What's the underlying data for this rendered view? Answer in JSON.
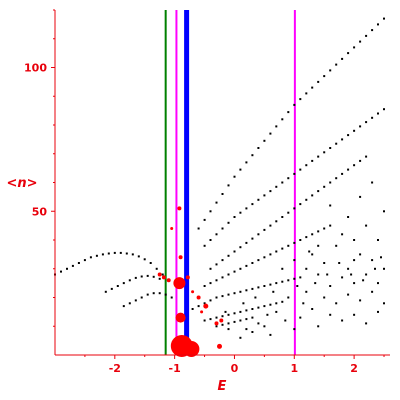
{
  "chart_data": {
    "type": "scatter",
    "title": "",
    "xlabel": "E",
    "ylabel": "<n>",
    "xlim": [
      -3.0,
      2.6
    ],
    "ylim": [
      0,
      120
    ],
    "xticks": [
      -2,
      -1,
      0,
      1,
      2
    ],
    "xtick_labels": [
      "-2",
      "-1",
      "0",
      "1",
      "2"
    ],
    "yticks": [
      50,
      100
    ],
    "ytick_labels": [
      "50",
      "100"
    ],
    "grid": false,
    "vertical_lines": [
      {
        "x": -1.15,
        "color": "#008000",
        "width": 2
      },
      {
        "x": -0.97,
        "color": "#ff00ff",
        "width": 2
      },
      {
        "x": -0.8,
        "color": "#0000ff",
        "width": 5
      },
      {
        "x": 1.01,
        "color": "#ff00ff",
        "width": 2
      }
    ],
    "black_points": [
      [
        -3.0,
        28
      ],
      [
        -2.9,
        29
      ],
      [
        -2.8,
        30
      ],
      [
        -2.7,
        31
      ],
      [
        -2.6,
        32
      ],
      [
        -2.5,
        33
      ],
      [
        -2.4,
        34
      ],
      [
        -2.3,
        34.5
      ],
      [
        -2.2,
        35
      ],
      [
        -2.1,
        35.3
      ],
      [
        -2.0,
        35.5
      ],
      [
        -1.9,
        35.5
      ],
      [
        -1.8,
        35.3
      ],
      [
        -1.7,
        35
      ],
      [
        -1.6,
        34.3
      ],
      [
        -1.5,
        33.3
      ],
      [
        -1.4,
        32
      ],
      [
        -1.3,
        30
      ],
      [
        -1.2,
        28
      ],
      [
        -2.15,
        22
      ],
      [
        -2.05,
        23
      ],
      [
        -1.95,
        24
      ],
      [
        -1.85,
        25
      ],
      [
        -1.75,
        26
      ],
      [
        -1.65,
        26.8
      ],
      [
        -1.55,
        27.3
      ],
      [
        -1.45,
        27.5
      ],
      [
        -1.35,
        27.2
      ],
      [
        -1.25,
        26.5
      ],
      [
        -1.85,
        17
      ],
      [
        -1.75,
        18
      ],
      [
        -1.65,
        19
      ],
      [
        -1.55,
        20
      ],
      [
        -1.45,
        21
      ],
      [
        -1.35,
        21.5
      ],
      [
        -1.25,
        21.5
      ],
      [
        -1.15,
        21
      ],
      [
        -1.05,
        20
      ],
      [
        -0.6,
        44
      ],
      [
        -0.5,
        47
      ],
      [
        -0.4,
        50
      ],
      [
        -0.3,
        53
      ],
      [
        -0.2,
        56
      ],
      [
        -0.1,
        59
      ],
      [
        0.0,
        62
      ],
      [
        0.1,
        64.5
      ],
      [
        0.2,
        67
      ],
      [
        0.3,
        69.5
      ],
      [
        0.4,
        72
      ],
      [
        0.5,
        74.5
      ],
      [
        0.6,
        77
      ],
      [
        0.7,
        79.5
      ],
      [
        0.8,
        82
      ],
      [
        0.9,
        84.5
      ],
      [
        1.0,
        87
      ],
      [
        1.1,
        89
      ],
      [
        1.2,
        91
      ],
      [
        1.3,
        93
      ],
      [
        1.4,
        95
      ],
      [
        1.5,
        97
      ],
      [
        1.6,
        99
      ],
      [
        1.7,
        101
      ],
      [
        1.8,
        103
      ],
      [
        1.9,
        105
      ],
      [
        2.0,
        107
      ],
      [
        2.1,
        109
      ],
      [
        2.2,
        111
      ],
      [
        2.3,
        113
      ],
      [
        2.4,
        115
      ],
      [
        2.5,
        117
      ],
      [
        -0.5,
        38
      ],
      [
        -0.4,
        40
      ],
      [
        -0.3,
        42
      ],
      [
        -0.2,
        44
      ],
      [
        -0.1,
        46
      ],
      [
        0.0,
        48
      ],
      [
        0.1,
        49.5
      ],
      [
        0.2,
        51
      ],
      [
        0.3,
        52.5
      ],
      [
        0.4,
        54
      ],
      [
        0.5,
        55.5
      ],
      [
        0.6,
        57
      ],
      [
        0.7,
        58.5
      ],
      [
        0.8,
        60
      ],
      [
        0.9,
        61.5
      ],
      [
        1.0,
        63
      ],
      [
        1.1,
        64.5
      ],
      [
        1.2,
        66
      ],
      [
        1.3,
        67.5
      ],
      [
        1.4,
        69
      ],
      [
        1.5,
        70.5
      ],
      [
        1.6,
        72
      ],
      [
        1.7,
        73.5
      ],
      [
        1.8,
        75
      ],
      [
        1.9,
        76.5
      ],
      [
        2.0,
        78
      ],
      [
        2.1,
        79.5
      ],
      [
        2.2,
        81
      ],
      [
        2.3,
        82.5
      ],
      [
        2.4,
        84
      ],
      [
        2.5,
        85.5
      ],
      [
        -0.4,
        30
      ],
      [
        -0.3,
        31.5
      ],
      [
        -0.2,
        33
      ],
      [
        -0.1,
        34.5
      ],
      [
        0.0,
        36
      ],
      [
        0.1,
        37.5
      ],
      [
        0.2,
        39
      ],
      [
        0.3,
        40.5
      ],
      [
        0.4,
        42
      ],
      [
        0.5,
        43.5
      ],
      [
        0.6,
        45
      ],
      [
        0.7,
        46.5
      ],
      [
        0.8,
        48
      ],
      [
        0.9,
        49.5
      ],
      [
        1.0,
        51
      ],
      [
        1.1,
        52.5
      ],
      [
        1.2,
        54
      ],
      [
        1.3,
        55.5
      ],
      [
        1.4,
        57
      ],
      [
        1.5,
        58.5
      ],
      [
        1.6,
        60
      ],
      [
        1.7,
        61.5
      ],
      [
        1.8,
        63
      ],
      [
        1.9,
        64.5
      ],
      [
        2.0,
        66
      ],
      [
        2.1,
        67.5
      ],
      [
        2.2,
        69
      ],
      [
        -0.5,
        24
      ],
      [
        -0.4,
        25
      ],
      [
        -0.3,
        26
      ],
      [
        -0.2,
        27
      ],
      [
        -0.1,
        28
      ],
      [
        0.0,
        29
      ],
      [
        0.1,
        30
      ],
      [
        0.2,
        31
      ],
      [
        0.3,
        32
      ],
      [
        0.4,
        33
      ],
      [
        0.5,
        34
      ],
      [
        0.6,
        35
      ],
      [
        0.7,
        36
      ],
      [
        0.8,
        37
      ],
      [
        0.9,
        38
      ],
      [
        1.0,
        39
      ],
      [
        1.1,
        40
      ],
      [
        1.2,
        41
      ],
      [
        1.3,
        42
      ],
      [
        1.4,
        43
      ],
      [
        1.5,
        44
      ],
      [
        1.6,
        45
      ],
      [
        -0.7,
        16
      ],
      [
        -0.6,
        17
      ],
      [
        -0.5,
        18
      ],
      [
        -0.4,
        19
      ],
      [
        -0.3,
        20
      ],
      [
        -0.2,
        20.5
      ],
      [
        -0.1,
        21
      ],
      [
        0.0,
        21.5
      ],
      [
        0.1,
        22
      ],
      [
        0.2,
        22.5
      ],
      [
        0.3,
        23
      ],
      [
        0.4,
        23.5
      ],
      [
        0.5,
        24
      ],
      [
        0.6,
        24.5
      ],
      [
        0.7,
        25
      ],
      [
        0.8,
        25.5
      ],
      [
        0.9,
        26
      ],
      [
        1.0,
        26.5
      ],
      [
        1.1,
        27
      ],
      [
        -0.5,
        12
      ],
      [
        -0.4,
        12.5
      ],
      [
        -0.3,
        13
      ],
      [
        -0.2,
        13.5
      ],
      [
        -0.1,
        14
      ],
      [
        0.0,
        14.5
      ],
      [
        0.1,
        15
      ],
      [
        0.2,
        15.5
      ],
      [
        0.3,
        16
      ],
      [
        0.4,
        16.5
      ],
      [
        0.5,
        17
      ],
      [
        0.6,
        17.5
      ],
      [
        0.7,
        18
      ],
      [
        0.8,
        18.5
      ],
      [
        -0.3,
        10
      ],
      [
        -0.2,
        10.5
      ],
      [
        -0.1,
        11
      ],
      [
        0.0,
        11.5
      ],
      [
        0.1,
        12
      ],
      [
        0.2,
        12.5
      ],
      [
        0.3,
        13
      ],
      [
        1.3,
        35
      ],
      [
        1.5,
        32
      ],
      [
        1.7,
        38
      ],
      [
        1.9,
        30
      ],
      [
        2.1,
        35
      ],
      [
        2.3,
        33
      ],
      [
        2.5,
        30
      ],
      [
        1.4,
        28
      ],
      [
        1.6,
        24
      ],
      [
        1.8,
        27
      ],
      [
        2.0,
        25
      ],
      [
        2.2,
        28
      ],
      [
        2.4,
        25
      ],
      [
        1.2,
        22
      ],
      [
        1.5,
        20
      ],
      [
        1.7,
        18
      ],
      [
        1.9,
        21
      ],
      [
        2.1,
        19
      ],
      [
        2.3,
        22
      ],
      [
        2.5,
        18
      ],
      [
        1.3,
        16
      ],
      [
        1.6,
        14
      ],
      [
        2.0,
        14
      ],
      [
        2.4,
        15
      ],
      [
        1.1,
        13
      ],
      [
        1.8,
        12
      ],
      [
        0.9,
        20
      ],
      [
        0.7,
        15
      ],
      [
        0.5,
        10
      ],
      [
        0.3,
        8
      ],
      [
        0.6,
        7
      ],
      [
        1.0,
        9
      ],
      [
        1.4,
        10
      ],
      [
        2.2,
        11
      ],
      [
        0.8,
        30
      ],
      [
        1.0,
        33
      ],
      [
        1.2,
        30
      ],
      [
        2.0,
        40
      ],
      [
        2.2,
        45
      ],
      [
        2.4,
        40
      ],
      [
        2.5,
        50
      ],
      [
        1.9,
        48
      ],
      [
        1.6,
        52
      ],
      [
        2.1,
        55
      ],
      [
        2.3,
        60
      ],
      [
        1.8,
        42
      ],
      [
        1.4,
        38
      ],
      [
        2.0,
        33
      ],
      [
        0.1,
        6
      ],
      [
        0.2,
        9
      ],
      [
        -0.1,
        9
      ],
      [
        0.4,
        11
      ],
      [
        0.55,
        14
      ],
      [
        0.15,
        18
      ],
      [
        -0.15,
        15
      ],
      [
        0.35,
        20
      ],
      [
        0.65,
        22
      ],
      [
        0.85,
        12
      ],
      [
        1.15,
        18
      ],
      [
        1.35,
        25
      ],
      [
        1.55,
        28
      ],
      [
        1.75,
        32
      ],
      [
        1.95,
        28
      ],
      [
        2.15,
        26
      ],
      [
        2.35,
        30
      ],
      [
        2.45,
        34
      ],
      [
        1.25,
        36
      ],
      [
        1.05,
        24
      ]
    ],
    "red_points": [
      {
        "x": -1.25,
        "y": 28,
        "r": 2
      },
      {
        "x": -1.18,
        "y": 27,
        "r": 2
      },
      {
        "x": -1.1,
        "y": 26,
        "r": 2
      },
      {
        "x": -0.92,
        "y": 51,
        "r": 2
      },
      {
        "x": -1.05,
        "y": 44,
        "r": 1.5
      },
      {
        "x": -0.92,
        "y": 25,
        "r": 6
      },
      {
        "x": -0.9,
        "y": 13,
        "r": 5
      },
      {
        "x": -0.88,
        "y": 2,
        "r": 11
      },
      {
        "x": -0.72,
        "y": 2,
        "r": 8
      },
      {
        "x": -0.9,
        "y": 34,
        "r": 2
      },
      {
        "x": -0.78,
        "y": 27,
        "r": 2
      },
      {
        "x": -0.6,
        "y": 20,
        "r": 2
      },
      {
        "x": -0.48,
        "y": 17,
        "r": 2.5
      },
      {
        "x": -0.3,
        "y": 11,
        "r": 2
      },
      {
        "x": -0.22,
        "y": 12,
        "r": 2
      },
      {
        "x": -0.25,
        "y": 3,
        "r": 2.5
      },
      {
        "x": -0.7,
        "y": 22,
        "r": 1.5
      },
      {
        "x": -0.55,
        "y": 15,
        "r": 1.5
      }
    ]
  }
}
